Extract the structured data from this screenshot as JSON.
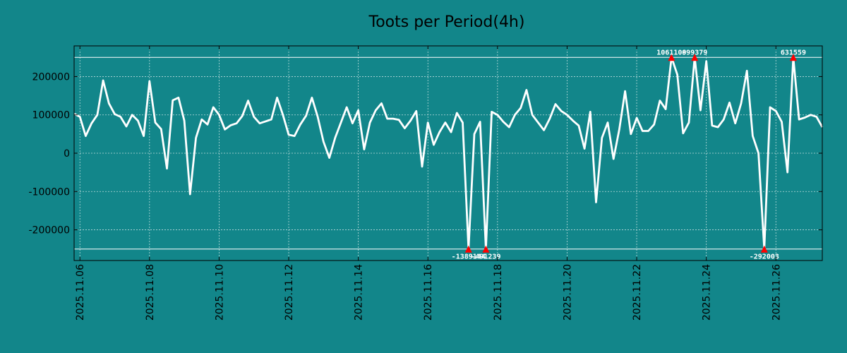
{
  "chart_data": {
    "type": "line",
    "title": "Toots per Period(4h)",
    "xlabel": "",
    "ylabel": "",
    "period_hours": 4,
    "start_date": "2025.11.05 20:00",
    "x_ticks": [
      "2025.11.06",
      "2025.11.08",
      "2025.11.10",
      "2025.11.12",
      "2025.11.14",
      "2025.11.16",
      "2025.11.18",
      "2025.11.20",
      "2025.11.22",
      "2025.11.24",
      "2025.11.26"
    ],
    "y_ticks": [
      -200000,
      -100000,
      0,
      100000,
      200000
    ],
    "y_tick_labels": [
      "-200000",
      "-100000",
      "0",
      "100000",
      "200000"
    ],
    "ylim": [
      -280000,
      280000
    ],
    "grid": true,
    "clip_high": 250000,
    "clip_low": -250000,
    "line_color": "#ffffff",
    "marker_color": "#ff0000",
    "values": [
      103000,
      95000,
      45000,
      78000,
      100000,
      190000,
      130000,
      102000,
      95000,
      70000,
      100000,
      85000,
      45000,
      188000,
      80000,
      63000,
      -40000,
      138000,
      145000,
      85000,
      -107000,
      40000,
      88000,
      75000,
      120000,
      100000,
      62000,
      73000,
      78000,
      97000,
      137000,
      95000,
      78000,
      83000,
      88000,
      145000,
      100000,
      48000,
      45000,
      75000,
      98000,
      145000,
      95000,
      30000,
      -12000,
      40000,
      80000,
      120000,
      78000,
      112000,
      10000,
      80000,
      112000,
      130000,
      90000,
      90000,
      87000,
      65000,
      85000,
      110000,
      -35000,
      80000,
      22000,
      55000,
      80000,
      55000,
      105000,
      80000,
      -250000,
      50000,
      82000,
      -250000,
      108000,
      100000,
      82000,
      68000,
      100000,
      118000,
      165000,
      100000,
      80000,
      60000,
      90000,
      128000,
      110000,
      100000,
      85000,
      72000,
      12000,
      108000,
      -128000,
      40000,
      80000,
      -15000,
      62000,
      162000,
      50000,
      92000,
      58000,
      58000,
      75000,
      137000,
      115000,
      250000,
      205000,
      52000,
      80000,
      250000,
      112000,
      240000,
      72000,
      68000,
      88000,
      132000,
      78000,
      130000,
      215000,
      45000,
      0,
      -250000,
      120000,
      110000,
      82000,
      -50000,
      250000,
      88000,
      93000,
      100000,
      95000,
      68000
    ],
    "outliers": [
      {
        "index": 68,
        "label": "-1389144"
      },
      {
        "index": 71,
        "label": "-491239"
      },
      {
        "index": 103,
        "label": "1061109"
      },
      {
        "index": 107,
        "label": "699379"
      },
      {
        "index": 119,
        "label": "-292003"
      },
      {
        "index": 124,
        "label": "631559"
      }
    ]
  }
}
